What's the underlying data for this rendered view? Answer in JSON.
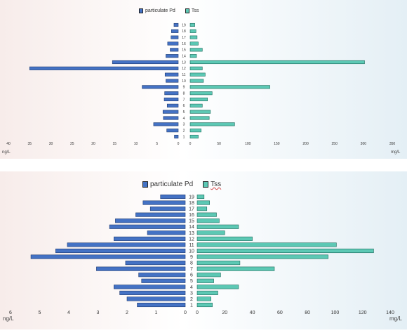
{
  "chart_data": [
    {
      "type": "bar",
      "orientation": "horizontal-back-to-back",
      "categories": [
        "1",
        "2",
        "3",
        "4",
        "5",
        "6",
        "7",
        "8",
        "9",
        "10",
        "11",
        "12",
        "13",
        "14",
        "15",
        "16",
        "17",
        "18",
        "19"
      ],
      "series": [
        {
          "name": "particulate Pd",
          "side": "left",
          "color": "#4472c4",
          "values": [
            0.9,
            2.7,
            5.8,
            3.5,
            3.6,
            2.6,
            3.3,
            3.2,
            8.5,
            2.9,
            3.1,
            35.0,
            15.5,
            2.9,
            1.9,
            2.5,
            1.7,
            1.6,
            1.0
          ]
        },
        {
          "name": "Tss",
          "side": "right",
          "color": "#5cc8b4",
          "values": [
            14,
            19,
            77,
            33,
            35,
            21,
            30,
            38,
            138,
            23,
            26,
            21,
            302,
            11,
            21,
            14,
            12,
            10,
            8
          ]
        }
      ],
      "left_axis": {
        "ticks": [
          "40",
          "35",
          "30",
          "25",
          "20",
          "15",
          "10",
          "5",
          "0"
        ],
        "max": 40,
        "unit": "ng/L"
      },
      "right_axis": {
        "ticks": [
          "0",
          "50",
          "100",
          "150",
          "200",
          "250",
          "300",
          "350"
        ],
        "max": 350,
        "unit": "mg/L"
      },
      "legend": "top-center"
    },
    {
      "type": "bar",
      "orientation": "horizontal-back-to-back",
      "categories": [
        "1",
        "2",
        "3",
        "4",
        "5",
        "6",
        "7",
        "8",
        "9",
        "10",
        "11",
        "12",
        "13",
        "14",
        "15",
        "16",
        "17",
        "18",
        "19"
      ],
      "series": [
        {
          "name": "particulate Pd",
          "side": "left",
          "color": "#4472c4",
          "values": [
            1.65,
            2.0,
            2.25,
            2.45,
            1.5,
            1.6,
            3.05,
            2.05,
            5.3,
            4.45,
            4.05,
            2.45,
            1.3,
            2.6,
            2.4,
            1.7,
            1.2,
            1.45,
            0.85
          ]
        },
        {
          "name": "Tss",
          "side": "right",
          "color": "#5cc8b4",
          "values": [
            11,
            10,
            15,
            30,
            12,
            17,
            56,
            31,
            95,
            128,
            101,
            40,
            20,
            30,
            16,
            14,
            7,
            9,
            5
          ]
        }
      ],
      "left_axis": {
        "ticks": [
          "6",
          "5",
          "4",
          "3",
          "2",
          "1",
          "0"
        ],
        "max": 6,
        "unit": "ng/L"
      },
      "right_axis": {
        "ticks": [
          "0",
          "20",
          "40",
          "60",
          "80",
          "100",
          "120",
          "140"
        ],
        "max": 140,
        "unit": "mg/L"
      },
      "legend": "top-center"
    }
  ]
}
